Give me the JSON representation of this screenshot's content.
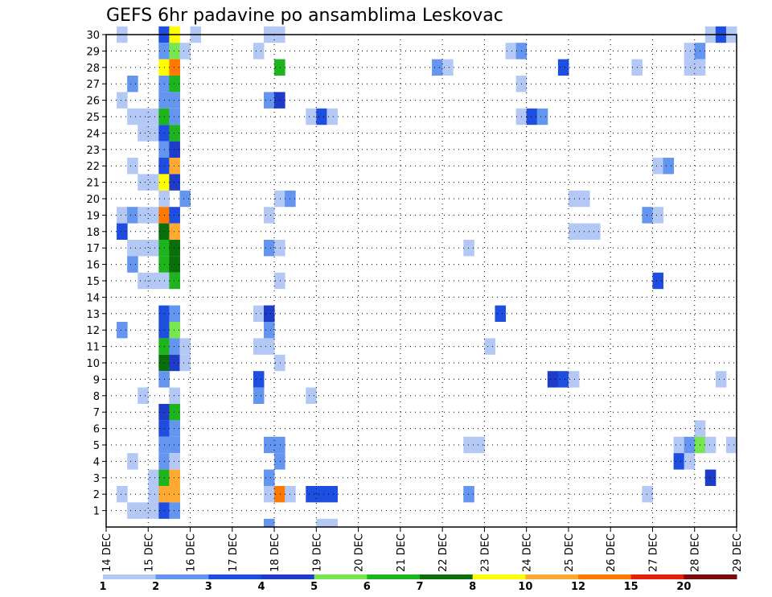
{
  "chart_data": {
    "type": "heatmap",
    "title": "GEFS 6hr padavine po ansamblima Leskovac",
    "x_ticks": [
      "14 DEC",
      "15 DEC",
      "16 DEC",
      "17 DEC",
      "18 DEC",
      "19 DEC",
      "20 DEC",
      "21 DEC",
      "22 DEC",
      "23 DEC",
      "24 DEC",
      "25 DEC",
      "26 DEC",
      "27 DEC",
      "28 DEC",
      "29 DEC"
    ],
    "y_ticks": [
      1,
      2,
      3,
      4,
      5,
      6,
      7,
      8,
      9,
      10,
      11,
      12,
      13,
      14,
      15,
      16,
      17,
      18,
      19,
      20,
      21,
      22,
      23,
      24,
      25,
      26,
      27,
      28,
      29,
      30
    ],
    "x_range": [
      "14 DEC 00Z",
      "29 DEC 00Z"
    ],
    "y_range": [
      0,
      30
    ],
    "time_step_hours": 6,
    "grid": true,
    "legend": {
      "position": "bottom",
      "labels": [
        1,
        2,
        3,
        4,
        5,
        6,
        7,
        8,
        10,
        12,
        15,
        20
      ],
      "colors": [
        "#b4c8f5",
        "#6496f0",
        "#1e4ee0",
        "#1e3cc8",
        "#78e650",
        "#1eb41e",
        "#0a6e0a",
        "#ffff00",
        "#ffaa32",
        "#ff7800",
        "#e61e0a",
        "#780a0a"
      ]
    },
    "cells": [
      {
        "m": 30,
        "t": [
          [
            0.25,
            1
          ],
          [
            2.0,
            1
          ],
          [
            3.75,
            1
          ],
          [
            4.0,
            1
          ],
          [
            14.25,
            1
          ],
          [
            14.5,
            3
          ],
          [
            14.75,
            1
          ]
        ]
      },
      {
        "m": 30,
        "t": [
          [
            1.25,
            3
          ],
          [
            1.5,
            8
          ]
        ]
      },
      {
        "m": 29,
        "t": [
          [
            1.25,
            2
          ],
          [
            1.5,
            5
          ],
          [
            1.75,
            1
          ],
          [
            3.5,
            1
          ],
          [
            13.75,
            1
          ],
          [
            14.0,
            2
          ],
          [
            9.5,
            1
          ],
          [
            9.75,
            2
          ]
        ]
      },
      {
        "m": 28,
        "t": [
          [
            1.25,
            8
          ],
          [
            1.5,
            10
          ],
          [
            4.0,
            6
          ],
          [
            7.75,
            2
          ],
          [
            8.0,
            1
          ],
          [
            10.75,
            3
          ],
          [
            12.5,
            1
          ],
          [
            13.75,
            1
          ],
          [
            14.0,
            1
          ]
        ]
      },
      {
        "m": 27,
        "t": [
          [
            0.5,
            2
          ],
          [
            1.25,
            2
          ],
          [
            1.5,
            6
          ],
          [
            9.75,
            1
          ]
        ]
      },
      {
        "m": 26,
        "t": [
          [
            0.25,
            1
          ],
          [
            1.25,
            2
          ],
          [
            1.5,
            2
          ],
          [
            3.75,
            2
          ],
          [
            4.0,
            4
          ]
        ]
      },
      {
        "m": 25,
        "t": [
          [
            0.5,
            1
          ],
          [
            0.75,
            1
          ],
          [
            1.0,
            1
          ],
          [
            1.25,
            6
          ],
          [
            1.5,
            2
          ],
          [
            4.75,
            1
          ],
          [
            5.0,
            3
          ],
          [
            5.25,
            1
          ],
          [
            9.75,
            1
          ],
          [
            10.0,
            3
          ],
          [
            10.25,
            2
          ]
        ]
      },
      {
        "m": 24,
        "t": [
          [
            0.75,
            1
          ],
          [
            1.0,
            1
          ],
          [
            1.25,
            3
          ],
          [
            1.5,
            6
          ]
        ]
      },
      {
        "m": 23,
        "t": [
          [
            1.25,
            2
          ],
          [
            1.5,
            4
          ]
        ]
      },
      {
        "m": 22,
        "t": [
          [
            0.5,
            1
          ],
          [
            1.25,
            3
          ],
          [
            1.5,
            9
          ],
          [
            13.0,
            1
          ],
          [
            13.25,
            2
          ]
        ]
      },
      {
        "m": 21,
        "t": [
          [
            0.75,
            1
          ],
          [
            1.0,
            1
          ],
          [
            1.25,
            8
          ],
          [
            1.5,
            4
          ]
        ]
      },
      {
        "m": 20,
        "t": [
          [
            1.25,
            1
          ],
          [
            1.75,
            2
          ],
          [
            4.0,
            1
          ],
          [
            4.25,
            2
          ],
          [
            11.0,
            1
          ],
          [
            11.25,
            1
          ]
        ]
      },
      {
        "m": 19,
        "t": [
          [
            0.25,
            1
          ],
          [
            0.5,
            2
          ],
          [
            0.75,
            1
          ],
          [
            1.0,
            1
          ],
          [
            1.25,
            10
          ],
          [
            1.5,
            3
          ],
          [
            3.75,
            1
          ],
          [
            12.75,
            2
          ],
          [
            13.0,
            1
          ]
        ]
      },
      {
        "m": 18,
        "t": [
          [
            0.25,
            3
          ],
          [
            1.25,
            7
          ],
          [
            1.5,
            9
          ],
          [
            11.0,
            1
          ],
          [
            11.25,
            1
          ],
          [
            11.5,
            1
          ]
        ]
      },
      {
        "m": 17,
        "t": [
          [
            0.5,
            1
          ],
          [
            0.75,
            1
          ],
          [
            1.0,
            1
          ],
          [
            1.25,
            6
          ],
          [
            1.5,
            7
          ],
          [
            3.75,
            2
          ],
          [
            4.0,
            1
          ],
          [
            8.5,
            1
          ]
        ]
      },
      {
        "m": 16,
        "t": [
          [
            0.5,
            2
          ],
          [
            1.25,
            6
          ],
          [
            1.5,
            7
          ]
        ]
      },
      {
        "m": 15,
        "t": [
          [
            0.75,
            1
          ],
          [
            1.0,
            1
          ],
          [
            1.25,
            1
          ],
          [
            1.5,
            6
          ],
          [
            4.0,
            1
          ],
          [
            13.0,
            3
          ]
        ]
      },
      {
        "m": 14,
        "t": []
      },
      {
        "m": 13,
        "t": [
          [
            1.25,
            3
          ],
          [
            1.5,
            2
          ],
          [
            3.5,
            1
          ],
          [
            3.75,
            4
          ],
          [
            9.25,
            3
          ]
        ]
      },
      {
        "m": 12,
        "t": [
          [
            0.25,
            2
          ],
          [
            1.25,
            3
          ],
          [
            1.5,
            5
          ],
          [
            3.75,
            2
          ]
        ]
      },
      {
        "m": 11,
        "t": [
          [
            1.25,
            6
          ],
          [
            1.5,
            2
          ],
          [
            1.75,
            1
          ],
          [
            3.5,
            1
          ],
          [
            3.75,
            1
          ],
          [
            9.0,
            1
          ]
        ]
      },
      {
        "m": 10,
        "t": [
          [
            1.25,
            7
          ],
          [
            1.5,
            4
          ],
          [
            1.75,
            1
          ],
          [
            4.0,
            1
          ]
        ]
      },
      {
        "m": 9,
        "t": [
          [
            1.25,
            2
          ],
          [
            3.5,
            3
          ],
          [
            10.5,
            4
          ],
          [
            10.75,
            3
          ],
          [
            11.0,
            1
          ],
          [
            14.5,
            1
          ]
        ]
      },
      {
        "m": 8,
        "t": [
          [
            0.75,
            1
          ],
          [
            1.5,
            1
          ],
          [
            3.5,
            2
          ],
          [
            4.75,
            1
          ]
        ]
      },
      {
        "m": 7,
        "t": [
          [
            1.25,
            4
          ],
          [
            1.5,
            6
          ]
        ]
      },
      {
        "m": 6,
        "t": [
          [
            1.25,
            3
          ],
          [
            1.5,
            2
          ],
          [
            14.0,
            1
          ]
        ]
      },
      {
        "m": 5,
        "t": [
          [
            1.25,
            2
          ],
          [
            1.5,
            2
          ],
          [
            3.75,
            2
          ],
          [
            4.0,
            2
          ],
          [
            8.5,
            1
          ],
          [
            8.75,
            1
          ],
          [
            13.5,
            1
          ],
          [
            13.75,
            2
          ],
          [
            14.0,
            5
          ],
          [
            14.25,
            1
          ],
          [
            14.75,
            1
          ]
        ]
      },
      {
        "m": 4,
        "t": [
          [
            0.5,
            1
          ],
          [
            1.25,
            2
          ],
          [
            1.5,
            1
          ],
          [
            4.0,
            2
          ],
          [
            13.5,
            3
          ],
          [
            13.75,
            1
          ]
        ]
      },
      {
        "m": 3,
        "t": [
          [
            1.0,
            1
          ],
          [
            1.25,
            6
          ],
          [
            1.5,
            9
          ],
          [
            3.75,
            2
          ],
          [
            14.25,
            4
          ]
        ]
      },
      {
        "m": 2,
        "t": [
          [
            0.25,
            1
          ],
          [
            1.0,
            1
          ],
          [
            1.25,
            9
          ],
          [
            1.5,
            9
          ],
          [
            3.75,
            1
          ],
          [
            4.0,
            10
          ],
          [
            4.25,
            1
          ],
          [
            4.75,
            3
          ],
          [
            5.0,
            3
          ],
          [
            5.25,
            3
          ],
          [
            8.5,
            2
          ],
          [
            12.75,
            1
          ]
        ]
      },
      {
        "m": 1,
        "t": [
          [
            0.5,
            1
          ],
          [
            0.75,
            1
          ],
          [
            1.0,
            1
          ],
          [
            1.25,
            3
          ],
          [
            1.5,
            2
          ]
        ]
      },
      {
        "m": 0,
        "t": [
          [
            3.75,
            2
          ],
          [
            5.0,
            1
          ],
          [
            5.25,
            1
          ]
        ]
      }
    ]
  }
}
